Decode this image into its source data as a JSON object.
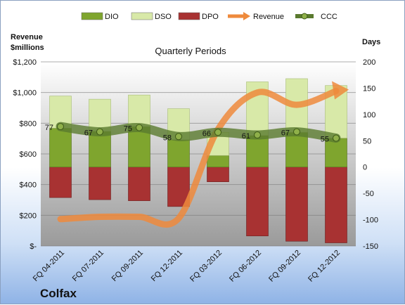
{
  "company": "Colfax",
  "chart_data": {
    "type": "bar",
    "title": "Quarterly Periods",
    "left_axis_label": [
      "Revenue",
      "$millions"
    ],
    "right_axis_label": "Days",
    "categories": [
      "FQ 04-2011",
      "FQ 07-2011",
      "FQ 09-2011",
      "FQ 12-2011",
      "FQ 03-2012",
      "FQ 06-2012",
      "FQ 09-2012",
      "FQ 12-2012"
    ],
    "left_ylim": [
      0,
      1200
    ],
    "left_ticks": [
      "$1,200",
      "$1,000",
      "$800",
      "$600",
      "$400",
      "$200",
      "$-"
    ],
    "right_ylim": [
      -150,
      200
    ],
    "right_ticks": [
      "200",
      "150",
      "100",
      "50",
      "0",
      "-50",
      "-100",
      "-150"
    ],
    "series": [
      {
        "name": "DIO",
        "type": "stacked-bar",
        "color": "#7fa52e",
        "values": [
          74,
          68,
          77,
          52,
          22,
          60,
          66,
          55
        ]
      },
      {
        "name": "DSO",
        "type": "stacked-bar",
        "color": "#d8e9a8",
        "values": [
          61,
          61,
          60,
          59,
          44,
          102,
          102,
          100
        ]
      },
      {
        "name": "DPO",
        "type": "negative-bar",
        "color": "#a83232",
        "values": [
          -58,
          -62,
          -64,
          -75,
          -28,
          -131,
          -141,
          -144
        ]
      },
      {
        "name": "Revenue",
        "type": "line",
        "axis": "left",
        "color": "#ee8a3c",
        "values": [
          175,
          190,
          190,
          180,
          760,
          1000,
          920,
          1010
        ]
      },
      {
        "name": "CCC",
        "type": "line",
        "axis": "right",
        "color": "#5a7a2e",
        "values": [
          77,
          67,
          75,
          58,
          66,
          61,
          67,
          55
        ]
      }
    ],
    "grid": true,
    "legend": "top"
  }
}
